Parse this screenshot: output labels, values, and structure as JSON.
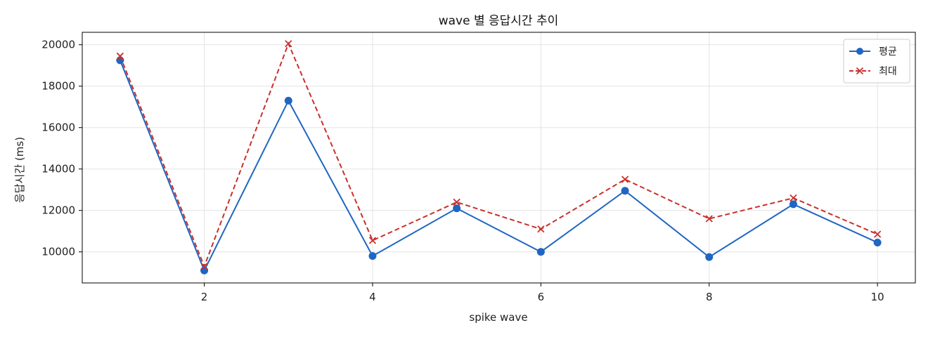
{
  "chart_data": {
    "type": "line",
    "title": "wave 별 응답시간 추이",
    "xlabel": "spike wave",
    "ylabel": "응답시간 (ms)",
    "x": [
      1,
      2,
      3,
      4,
      5,
      6,
      7,
      8,
      9,
      10
    ],
    "xlim": [
      0.55,
      10.45
    ],
    "ylim": [
      8500,
      20600
    ],
    "xticks": [
      2,
      4,
      6,
      8,
      10
    ],
    "yticks": [
      10000,
      12000,
      14000,
      16000,
      18000,
      20000
    ],
    "grid": true,
    "legend_position": "top-right",
    "series": [
      {
        "name": "평균",
        "color": "#1f66c2",
        "line_style": "solid",
        "marker": "circle",
        "values": [
          19250,
          9100,
          17300,
          9800,
          12100,
          10000,
          12950,
          9750,
          12300,
          10450
        ]
      },
      {
        "name": "최대",
        "color": "#c9302c",
        "line_style": "dashed",
        "marker": "x",
        "values": [
          19450,
          9300,
          20050,
          10550,
          12400,
          11100,
          13500,
          11600,
          12600,
          10850
        ]
      }
    ]
  }
}
